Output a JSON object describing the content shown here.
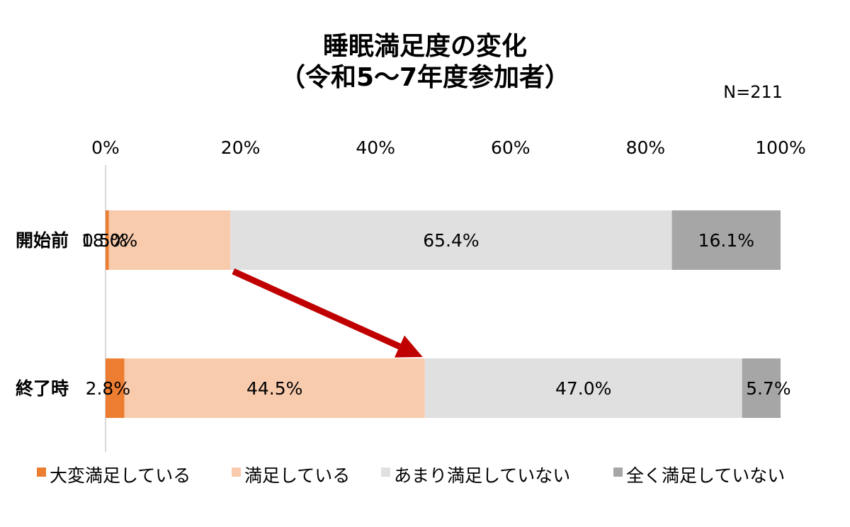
{
  "chart_data": {
    "type": "bar",
    "orientation": "horizontal",
    "stacked": true,
    "percent": true,
    "title": "睡眠満足度の変化",
    "subtitle": "（令和5～7年度参加者）",
    "sample_size": "N=211",
    "categories": [
      "開始前",
      "終了時"
    ],
    "xlim": [
      0,
      100
    ],
    "x_ticks": [
      "0%",
      "20%",
      "40%",
      "60%",
      "80%",
      "100%"
    ],
    "series": [
      {
        "name": "大変満足している",
        "color": "#ED7D31",
        "values": [
          0.5,
          2.8
        ],
        "labels": [
          "0.5%",
          "2.8%"
        ]
      },
      {
        "name": "満足している",
        "color": "#F8CBAD",
        "values": [
          18.0,
          44.5
        ],
        "labels": [
          "18.0%",
          "44.5%"
        ]
      },
      {
        "name": "あまり満足していない",
        "color": "#E0E0E0",
        "values": [
          65.4,
          47.0
        ],
        "labels": [
          "65.4%",
          "47.0%"
        ]
      },
      {
        "name": "全く満足していない",
        "color": "#A6A6A6",
        "values": [
          16.1,
          5.7
        ],
        "labels": [
          "16.1%",
          "5.7%"
        ]
      }
    ],
    "annotation": "arrow from 開始前 満足している to 終了時 満足している",
    "annotation_color": "#C00000",
    "legend_position": "bottom"
  }
}
